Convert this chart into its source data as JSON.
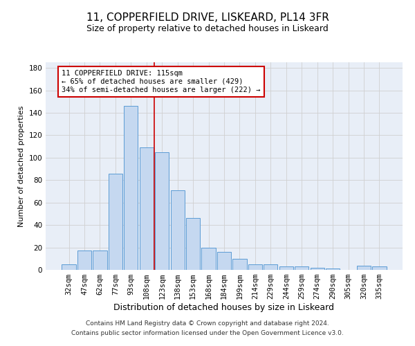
{
  "title1": "11, COPPERFIELD DRIVE, LISKEARD, PL14 3FR",
  "title2": "Size of property relative to detached houses in Liskeard",
  "xlabel": "Distribution of detached houses by size in Liskeard",
  "ylabel": "Number of detached properties",
  "categories": [
    "32sqm",
    "47sqm",
    "62sqm",
    "77sqm",
    "93sqm",
    "108sqm",
    "123sqm",
    "138sqm",
    "153sqm",
    "168sqm",
    "184sqm",
    "199sqm",
    "214sqm",
    "229sqm",
    "244sqm",
    "259sqm",
    "274sqm",
    "290sqm",
    "305sqm",
    "320sqm",
    "335sqm"
  ],
  "values": [
    5,
    17,
    17,
    86,
    146,
    109,
    105,
    71,
    46,
    20,
    16,
    10,
    5,
    5,
    3,
    3,
    2,
    1,
    0,
    4,
    3
  ],
  "bar_color": "#c5d8f0",
  "bar_edge_color": "#5b9bd5",
  "vline_x": 5.5,
  "vline_color": "#cc0000",
  "annotation_text": "11 COPPERFIELD DRIVE: 115sqm\n← 65% of detached houses are smaller (429)\n34% of semi-detached houses are larger (222) →",
  "annotation_box_color": "#ffffff",
  "annotation_box_edge_color": "#cc0000",
  "ylim": [
    0,
    185
  ],
  "yticks": [
    0,
    20,
    40,
    60,
    80,
    100,
    120,
    140,
    160,
    180
  ],
  "grid_color": "#d0d0d0",
  "bg_color": "#e8eef7",
  "footer_line1": "Contains HM Land Registry data © Crown copyright and database right 2024.",
  "footer_line2": "Contains public sector information licensed under the Open Government Licence v3.0.",
  "title1_fontsize": 11,
  "title2_fontsize": 9,
  "xlabel_fontsize": 9,
  "ylabel_fontsize": 8,
  "tick_fontsize": 7.5,
  "annotation_fontsize": 7.5,
  "footer_fontsize": 6.5
}
